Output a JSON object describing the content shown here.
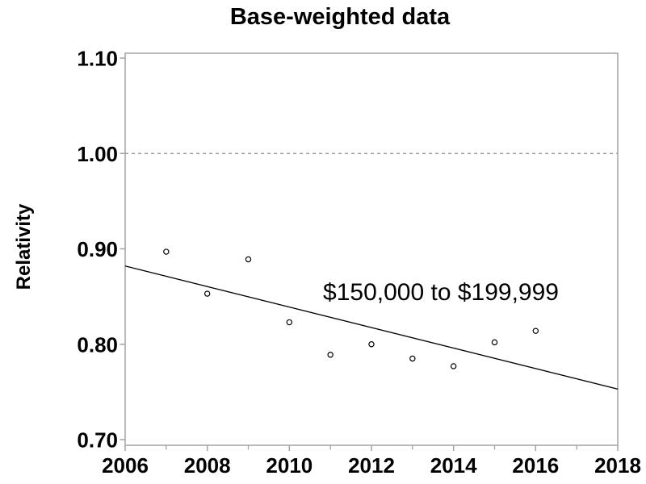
{
  "figure": {
    "title": "Base-weighted data",
    "y_axis_label": "Relativity"
  },
  "chart_data": {
    "type": "scatter",
    "title": "Base-weighted data",
    "xlabel": "",
    "ylabel": "Relativity",
    "xlim": [
      2006,
      2018
    ],
    "ylim": [
      0.694,
      1.105
    ],
    "grid": "off",
    "legend": "none",
    "x_major_ticks": [
      2006,
      2008,
      2010,
      2012,
      2014,
      2016,
      2018
    ],
    "x_minor_ticks": [
      2007,
      2009,
      2011,
      2013,
      2015,
      2017
    ],
    "y_ticks": [
      {
        "value": 1.1,
        "label": "1.10"
      },
      {
        "value": 1.0,
        "label": "1.00"
      },
      {
        "value": 0.9,
        "label": "0.90"
      },
      {
        "value": 0.8,
        "label": "0.80"
      },
      {
        "value": 0.7,
        "label": "0.70"
      }
    ],
    "reference_line": {
      "y": 1.0,
      "style": "dashed"
    },
    "series": [
      {
        "name": "observations",
        "type": "scatter",
        "marker": "open-circle",
        "x": [
          2007,
          2008,
          2009,
          2010,
          2011,
          2012,
          2013,
          2014,
          2015,
          2016
        ],
        "y": [
          0.897,
          0.853,
          0.889,
          0.823,
          0.789,
          0.8,
          0.785,
          0.777,
          0.802,
          0.814
        ]
      },
      {
        "name": "trend-line",
        "type": "line",
        "x": [
          2006,
          2018
        ],
        "y": [
          0.882,
          0.753
        ]
      }
    ],
    "annotation": {
      "text": "$150,000 to $199,999",
      "x": 2010.82,
      "y": 0.854,
      "anchor": "start"
    },
    "colors": {
      "background": "#ffffff",
      "axis_frame": "#a3a3a3",
      "tick": "#a3a3a3",
      "reference_line": "#8c8c8c",
      "trend_line": "#000000",
      "marker_stroke": "#000000",
      "marker_fill": "#ffffff",
      "text": "#000000"
    }
  }
}
